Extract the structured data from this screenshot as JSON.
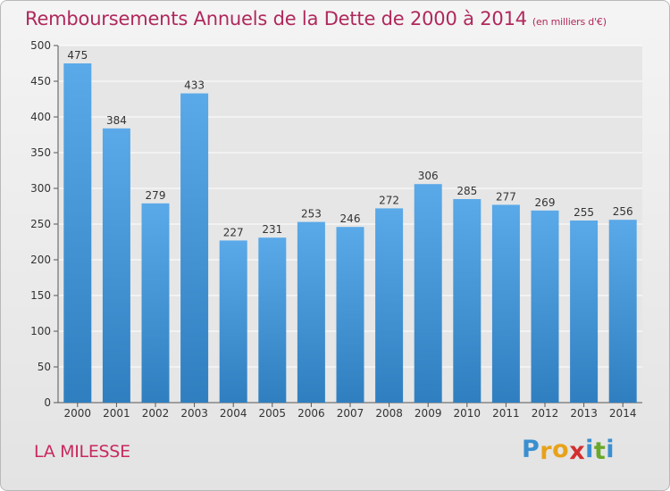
{
  "header": {
    "title": "Remboursements Annuels de la Dette de 2000 à 2014",
    "subtitle": "(en milliers d'€)"
  },
  "footer": {
    "location": "LA MILESSE",
    "brand": "Proxiti",
    "brand_letters": [
      {
        "char": "P",
        "color": "#3a8fd0"
      },
      {
        "char": "r",
        "color": "#e8a21a"
      },
      {
        "char": "o",
        "color": "#e8a21a"
      },
      {
        "char": "x",
        "color": "#d32f2f"
      },
      {
        "char": "i",
        "color": "#3a8fd0"
      },
      {
        "char": "t",
        "color": "#6aa82a"
      },
      {
        "char": "i",
        "color": "#3a8fd0"
      }
    ]
  },
  "colors": {
    "bar_top": "#5aa9e8",
    "bar_bottom": "#2f7fc0",
    "title": "#b0285c"
  },
  "chart_data": {
    "type": "bar",
    "title": "Remboursements Annuels de la Dette de 2000 à 2014",
    "subtitle": "(en milliers d'€)",
    "xlabel": "",
    "ylabel": "",
    "categories": [
      "2000",
      "2001",
      "2002",
      "2003",
      "2004",
      "2005",
      "2006",
      "2007",
      "2008",
      "2009",
      "2010",
      "2011",
      "2012",
      "2013",
      "2014"
    ],
    "values": [
      475,
      384,
      279,
      433,
      227,
      231,
      253,
      246,
      272,
      306,
      285,
      277,
      269,
      255,
      256
    ],
    "ylim": [
      0,
      500
    ],
    "yticks": [
      0,
      50,
      100,
      150,
      200,
      250,
      300,
      350,
      400,
      450,
      500
    ],
    "grid": true
  }
}
